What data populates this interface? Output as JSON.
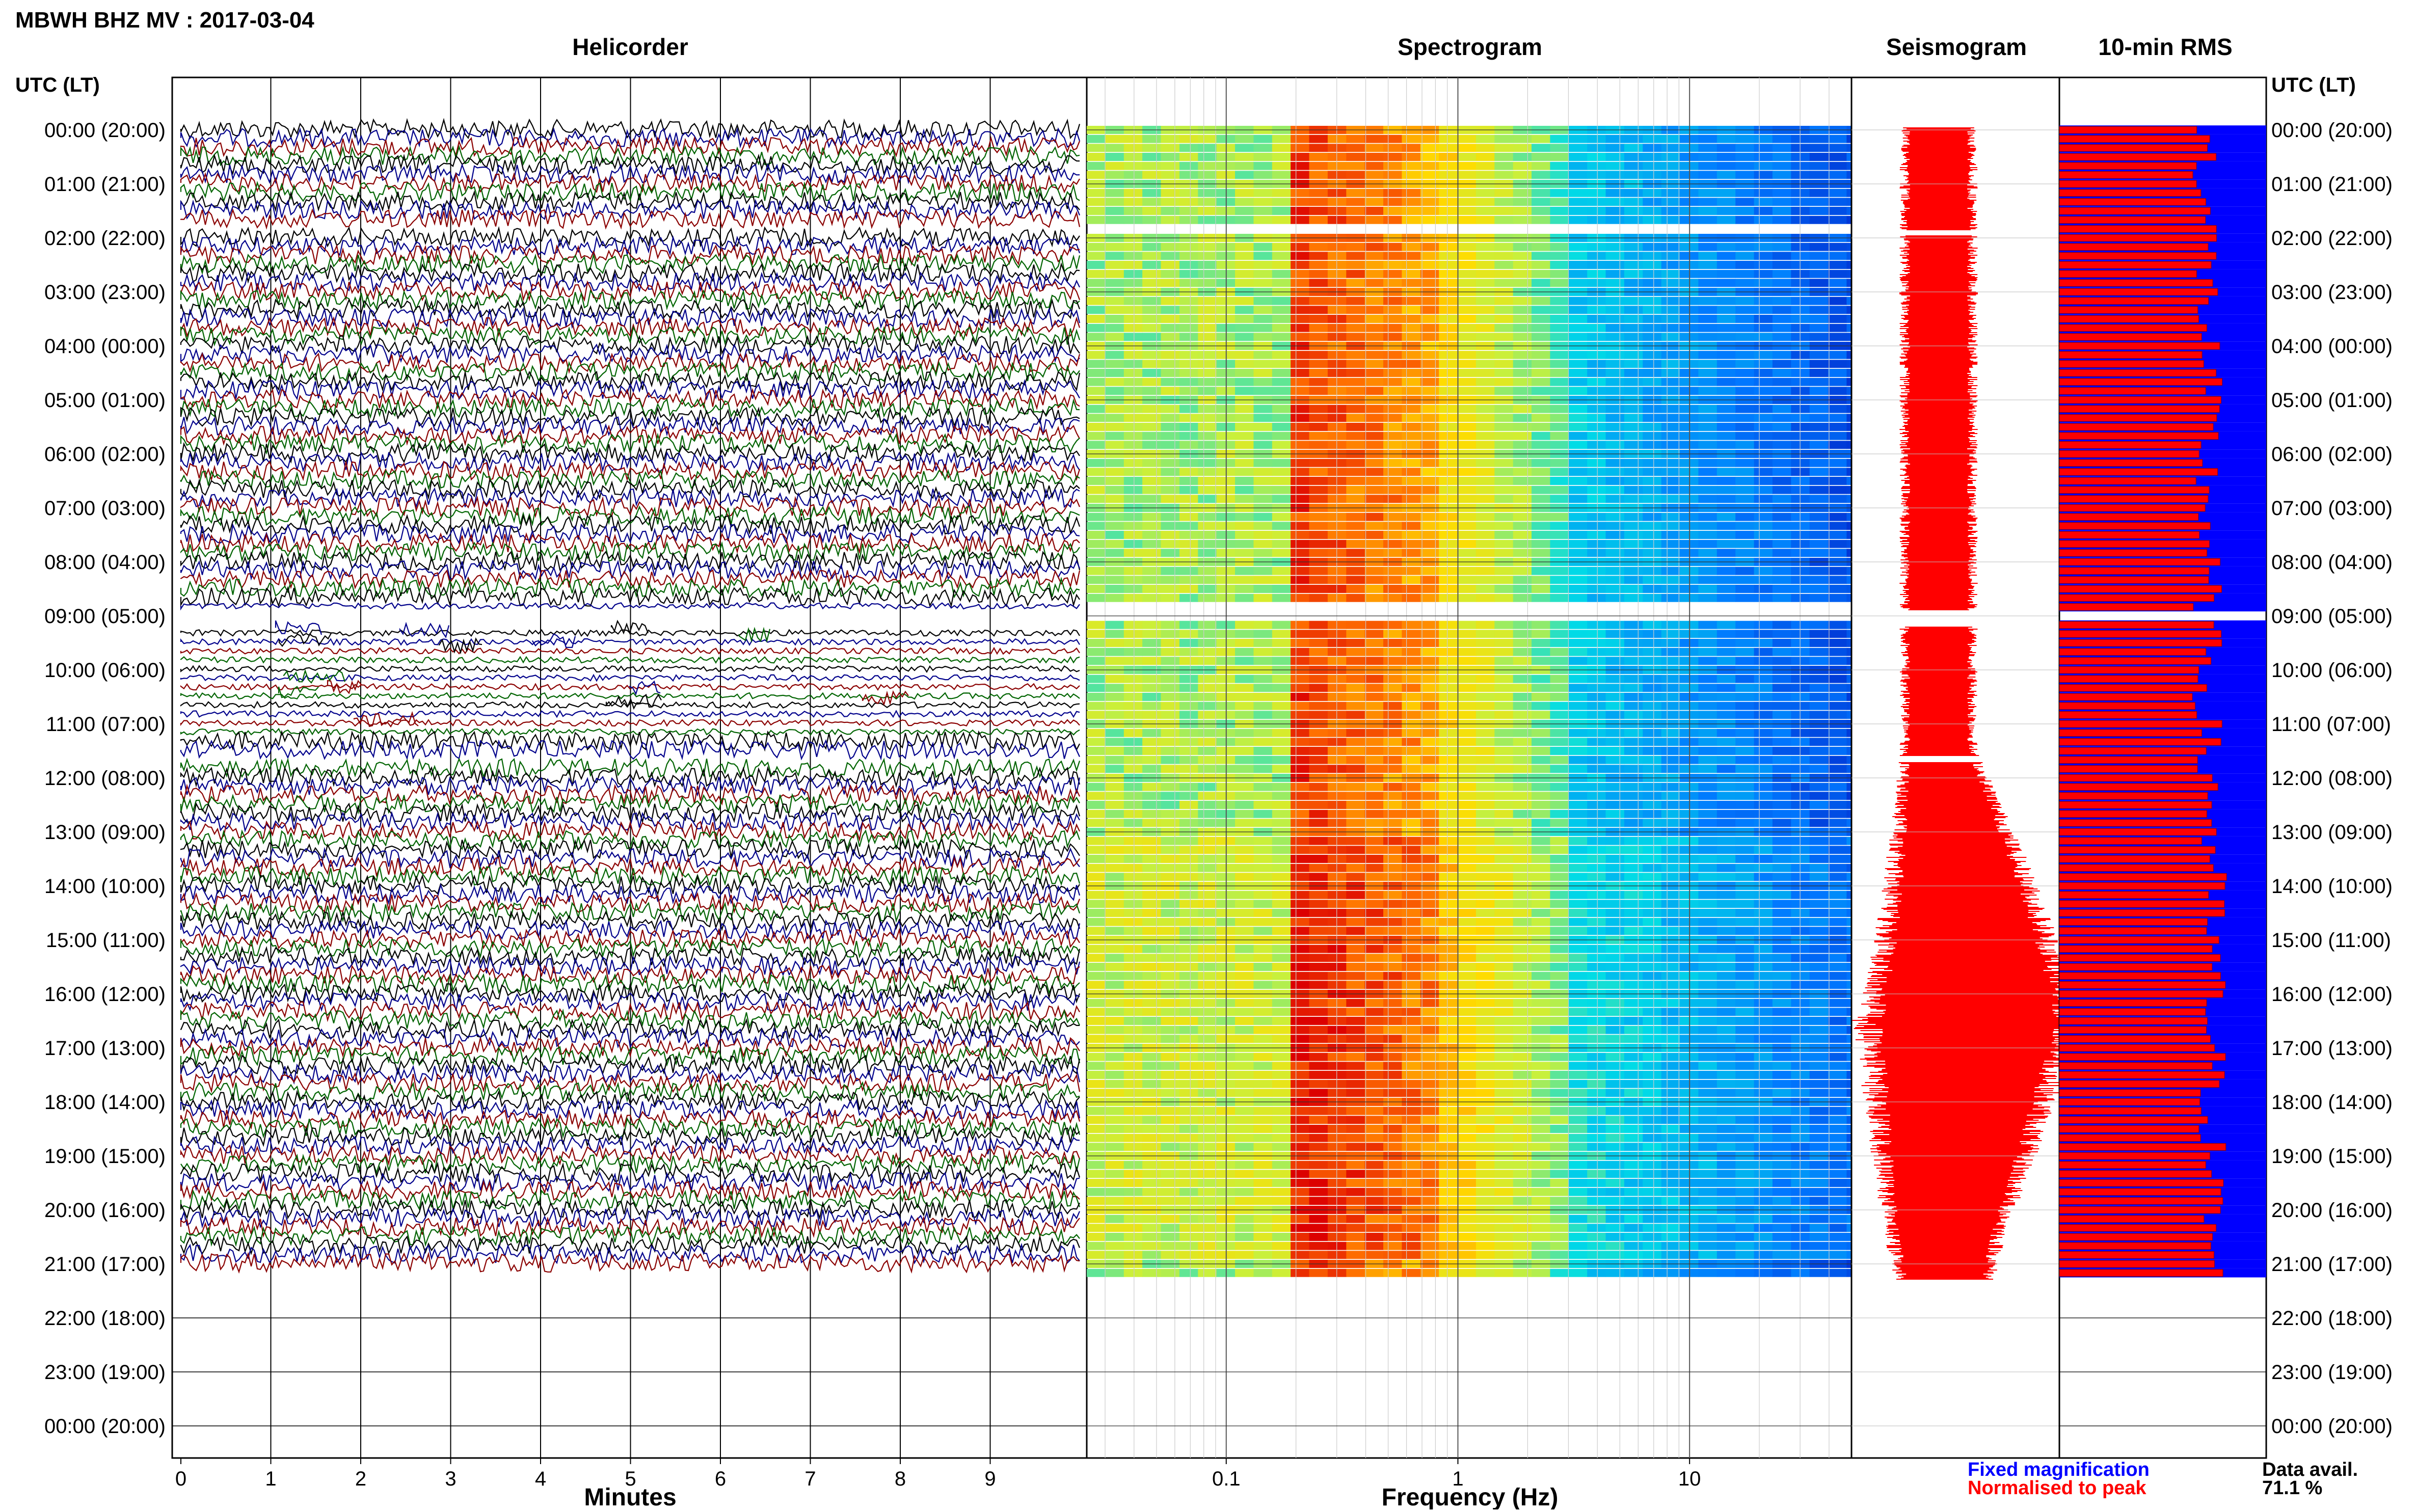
{
  "header": {
    "title": "MBWH BHZ MV : 2017-03-04",
    "utc_label_left": "UTC (LT)",
    "utc_label_right": "UTC (LT)"
  },
  "panels": {
    "helicorder": "Helicorder",
    "spectrogram": "Spectrogram",
    "seismogram": "Seismogram",
    "rms": "10-min RMS"
  },
  "axes": {
    "minutes_label": "Minutes",
    "frequency_label": "Frequency (Hz)",
    "minute_ticks": [
      "0",
      "1",
      "2",
      "3",
      "4",
      "5",
      "6",
      "7",
      "8",
      "9"
    ],
    "frequency_ticks": [
      "0.1",
      "1",
      "10"
    ]
  },
  "legend": {
    "fixed": "Fixed magnification",
    "normalised": "Normalised to peak",
    "fixed_color": "#0000ff",
    "normalised_color": "#ff0000"
  },
  "availability": {
    "label": "Data avail.",
    "value": "71.1 %"
  },
  "chart_data": {
    "type": "heatmap",
    "time_labels": [
      "00:00 (20:00)",
      "01:00 (21:00)",
      "02:00 (22:00)",
      "03:00 (23:00)",
      "04:00 (00:00)",
      "05:00 (01:00)",
      "06:00 (02:00)",
      "07:00 (03:00)",
      "08:00 (04:00)",
      "09:00 (05:00)",
      "10:00 (06:00)",
      "11:00 (07:00)",
      "12:00 (08:00)",
      "13:00 (09:00)",
      "14:00 (10:00)",
      "15:00 (11:00)",
      "16:00 (12:00)",
      "17:00 (13:00)",
      "18:00 (14:00)",
      "19:00 (15:00)",
      "20:00 (16:00)",
      "21:00 (17:00)",
      "22:00 (18:00)",
      "23:00 (19:00)",
      "00:00 (20:00)"
    ],
    "helicorder_xlim": [
      0,
      10
    ],
    "helicorder_colors": [
      "#000000",
      "#00008b",
      "#8b0000",
      "#006400"
    ],
    "frequency_range_hz": [
      0.025,
      50
    ],
    "frequency_scale": "log",
    "data_end_hour": 21.3,
    "data_gaps_hours": [
      [
        1.85,
        1.95
      ],
      [
        8.9,
        9.2
      ],
      [
        11.6,
        11.7
      ]
    ],
    "rms_rows_per_hour": 6,
    "rms_scale": "linear",
    "data_availability_percent": 71.1
  }
}
